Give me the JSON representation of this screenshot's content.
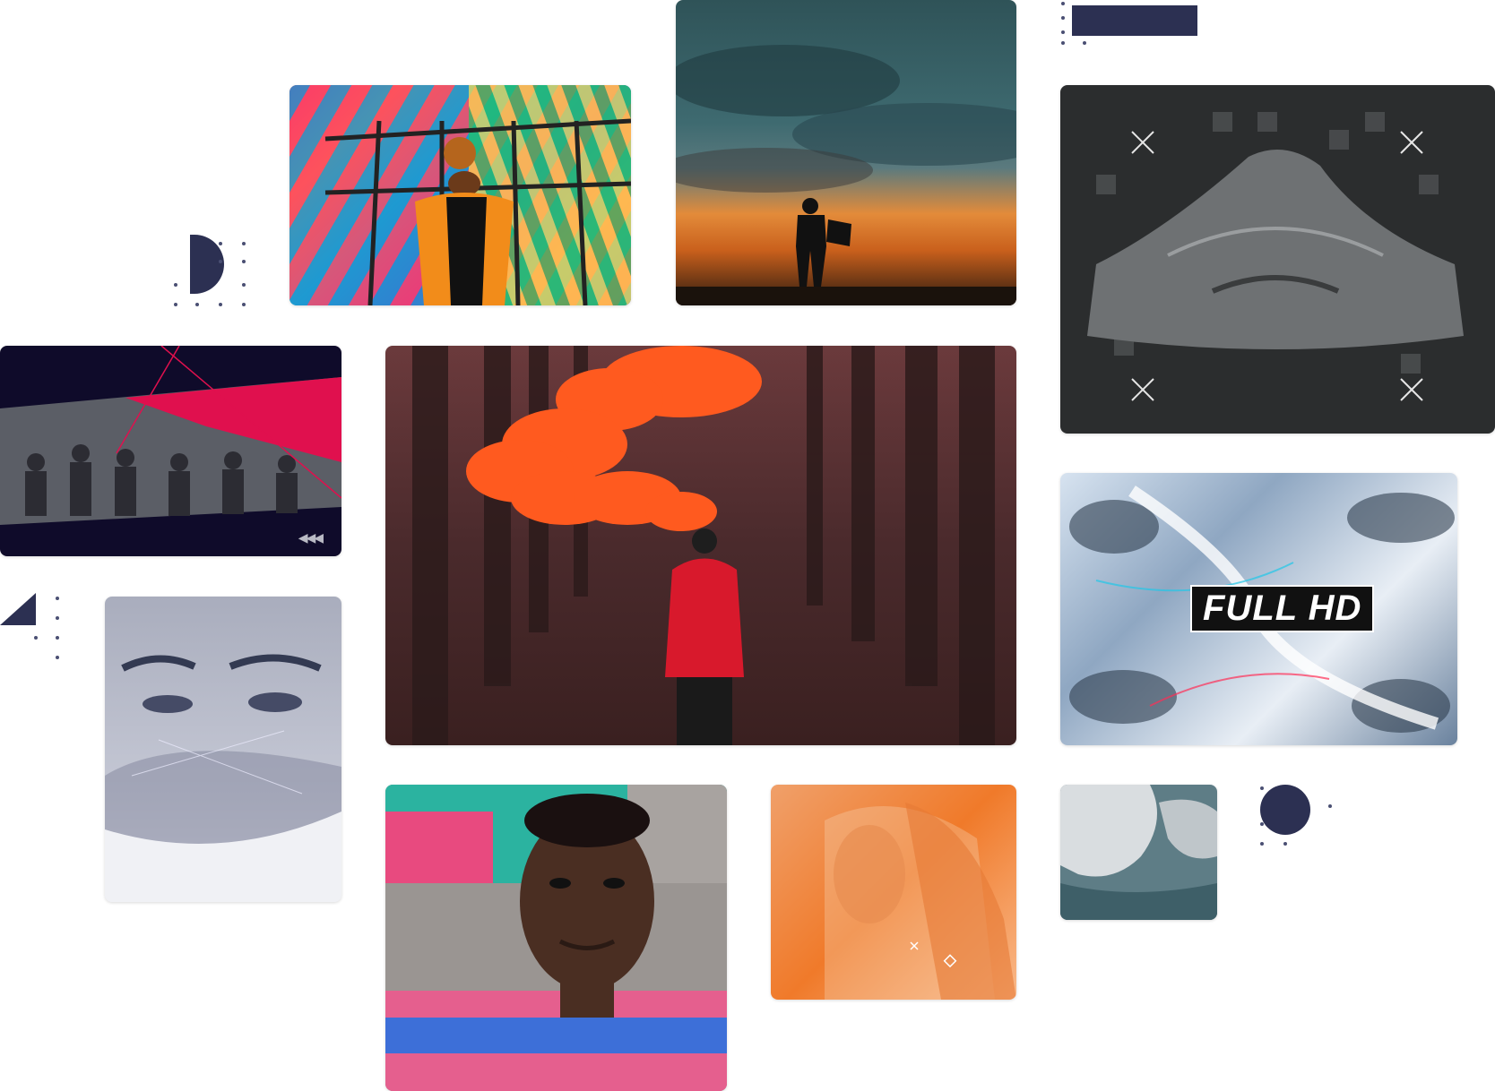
{
  "tiles": {
    "colorful_dancer": {
      "icon": "woman-dancing-colorful-stripes"
    },
    "sunset_silhouette": {
      "icon": "person-silhouette-sunset-clouds"
    },
    "covered_car": {
      "icon": "covered-race-car-pixel-glitch"
    },
    "city_crowd": {
      "icon": "city-crowd-slanted-banner",
      "rewind_glyph": "◀◀◀"
    },
    "smoke_flare": {
      "icon": "person-red-jacket-orange-smoke"
    },
    "full_hd": {
      "icon": "snowy-aerial-glitch",
      "badge": "FULL HD"
    },
    "woman_eyes": {
      "icon": "woman-eyes-ink-wash"
    },
    "man_portrait": {
      "icon": "man-portrait-split-glitch"
    },
    "orange_woman": {
      "icon": "woman-orange-duotone"
    },
    "ocean_ice": {
      "icon": "ocean-ice-aerial"
    }
  },
  "colors": {
    "navy": "#2c3052",
    "dots": "#4a4f73"
  }
}
